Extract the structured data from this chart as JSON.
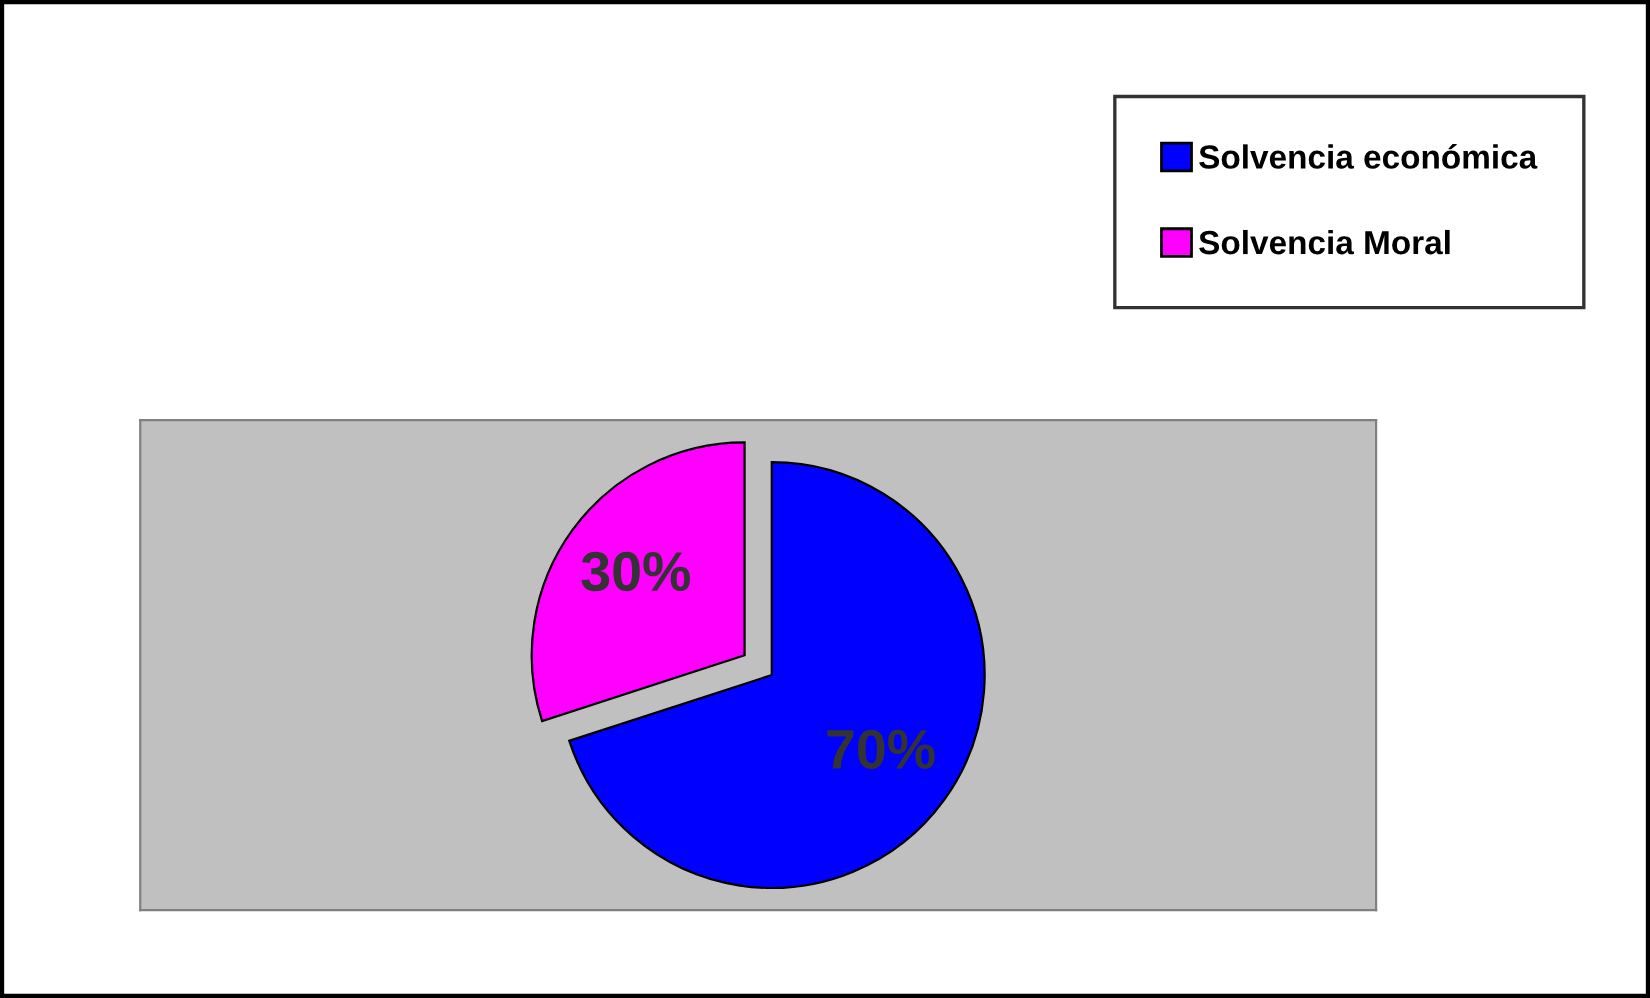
{
  "chart_data": {
    "type": "pie",
    "categories": [
      "Solvencia económica",
      "Solvencia Moral"
    ],
    "values": [
      70,
      30
    ],
    "colors": [
      "#0000ff",
      "#ff00ff"
    ],
    "value_labels": [
      "70%",
      "30%"
    ],
    "legend": "top right"
  }
}
